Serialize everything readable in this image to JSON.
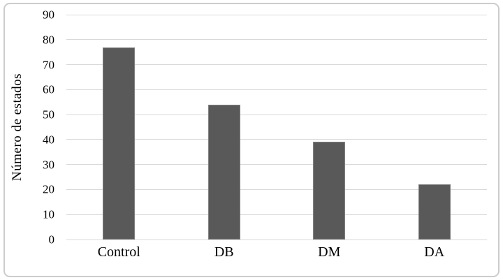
{
  "chart_data": {
    "type": "bar",
    "title": "",
    "categories": [
      "Control",
      "DB",
      "DM",
      "DA"
    ],
    "values": [
      77,
      54,
      39,
      22
    ],
    "xlabel": "",
    "ylabel": "Número de estados",
    "ylim": [
      0,
      90
    ],
    "ytick_step": 10,
    "ytick_labels": [
      "0",
      "10",
      "20",
      "30",
      "40",
      "50",
      "60",
      "70",
      "80",
      "90"
    ],
    "grid": true,
    "legend": "none",
    "colors": {
      "bar_fill": "#595959",
      "bar_border": "#808080",
      "gridline": "#d9d9d9",
      "frame_border": "#cccccc",
      "text": "#000000",
      "background": "#ffffff"
    }
  }
}
